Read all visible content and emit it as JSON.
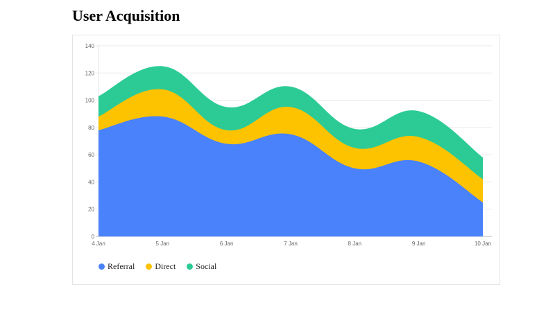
{
  "title": "User Acquisition",
  "chart_data": {
    "type": "area",
    "stacked": true,
    "title": "",
    "xlabel": "",
    "ylabel": "",
    "categories": [
      "4 Jan",
      "5 Jan",
      "6 Jan",
      "7 Jan",
      "8 Jan",
      "9 Jan",
      "10 Jan"
    ],
    "ylim": [
      0,
      140
    ],
    "yticks": [
      0,
      20,
      40,
      60,
      80,
      100,
      120,
      140
    ],
    "grid": true,
    "legend_position": "bottom-left",
    "series": [
      {
        "name": "Referral",
        "color": "#4a82fc",
        "values": [
          78,
          88,
          68,
          75,
          50,
          55,
          25
        ]
      },
      {
        "name": "Direct",
        "color": "#fdc200",
        "values": [
          10,
          20,
          10,
          20,
          15,
          18,
          17
        ]
      },
      {
        "name": "Social",
        "color": "#2ccb96",
        "values": [
          15,
          17,
          17,
          15,
          14,
          19,
          16
        ]
      }
    ]
  }
}
